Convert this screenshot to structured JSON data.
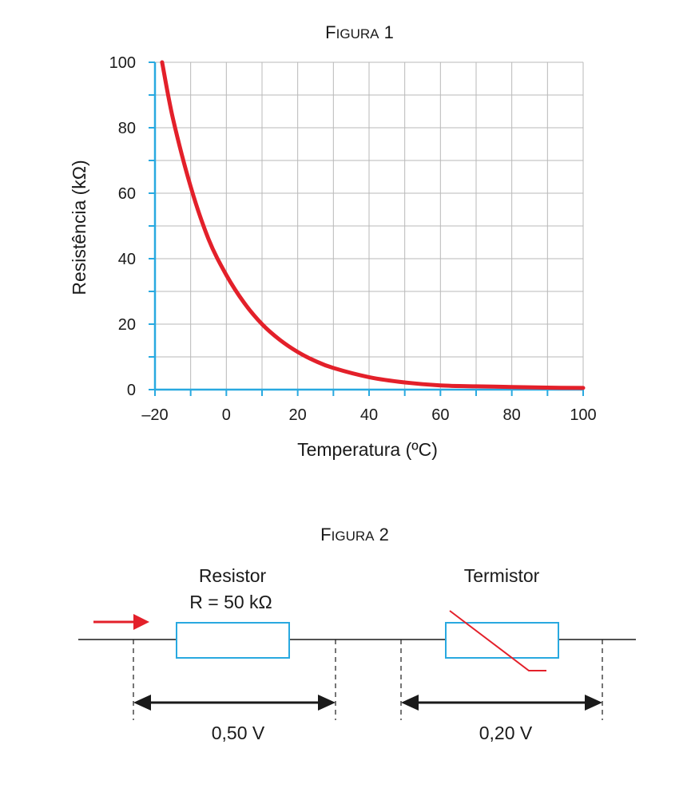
{
  "figure1": {
    "title_first": "F",
    "title_rest": "IGURA",
    "title_num": " 1"
  },
  "chart_data": {
    "type": "line",
    "xlabel": "Temperatura (ºC)",
    "ylabel": "Resistência (kΩ)",
    "xlim": [
      -20,
      100
    ],
    "ylim": [
      0,
      100
    ],
    "x_ticks": [
      "–20",
      "0",
      "20",
      "40",
      "60",
      "80",
      "100"
    ],
    "y_ticks": [
      "0",
      "20",
      "40",
      "60",
      "80",
      "100"
    ],
    "grid": true,
    "series": [
      {
        "color": "#e3202a",
        "x": [
          -18,
          -15,
          -10,
          -5,
          0,
          5,
          10,
          15,
          20,
          25,
          30,
          40,
          50,
          60,
          70,
          80,
          90,
          100
        ],
        "y": [
          100,
          83,
          62,
          46,
          35,
          26.5,
          20,
          15.2,
          11.5,
          8.7,
          6.6,
          3.8,
          2.2,
          1.3,
          1.0,
          0.8,
          0.6,
          0.5
        ]
      }
    ]
  },
  "figure2": {
    "title_first": "F",
    "title_rest": "IGURA",
    "title_num": " 2",
    "resistor_label": "Resistor",
    "resistor_value": "R = 50 kΩ",
    "thermistor_label": "Termistor",
    "voltage_resistor": "0,50 V",
    "voltage_thermistor": "0,20 V"
  },
  "colors": {
    "curve": "#e3202a",
    "axis": "#29a9e0",
    "grid": "#b9b9b9",
    "component": "#29a9e0",
    "arrow": "#e3202a"
  }
}
